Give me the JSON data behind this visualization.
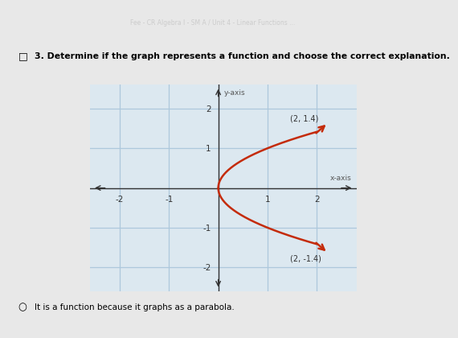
{
  "title_line1": "Fee - CR Algebra I - SM A / Unit 4 - Linear Functions ...",
  "question": "3. Determine if the graph represents a function and choose the correct explanation.",
  "answer": "It is a function because it graphs as a parabola.",
  "xlim": [
    -2.6,
    2.8
  ],
  "ylim": [
    -2.6,
    2.6
  ],
  "xticks": [
    -2,
    -1,
    0,
    1,
    2
  ],
  "yticks": [
    -2,
    -1,
    0,
    1,
    2
  ],
  "xlabel": "x-axis",
  "ylabel": "y-axis",
  "curve_color": "#c42b0a",
  "grid_color": "#adc8dc",
  "bg_color": "#dce8f0",
  "plot_bg": "#dce8f0",
  "outer_bg": "#e8e8e8",
  "banner_bg": "#1a1a2e",
  "point1": [
    2,
    1.414
  ],
  "point2": [
    2,
    -1.414
  ],
  "label1": "(2, 1.4)",
  "label2": "(2, -1.4)"
}
